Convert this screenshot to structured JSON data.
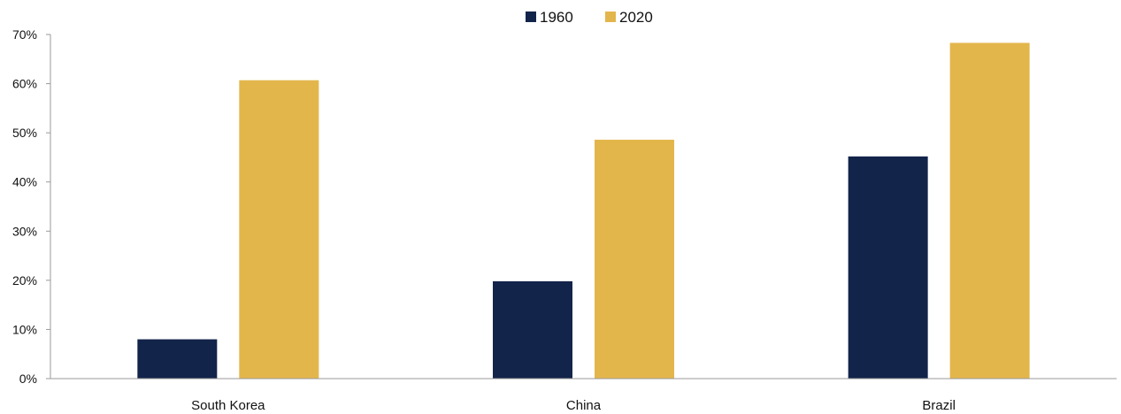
{
  "chart_data": {
    "type": "bar",
    "categories": [
      "South Korea",
      "China",
      "Brazil"
    ],
    "series": [
      {
        "name": "1960",
        "color": "#13244a",
        "values": [
          8,
          19.8,
          45.2
        ]
      },
      {
        "name": "2020",
        "color": "#e3b64c",
        "values": [
          60.7,
          48.6,
          68.3
        ]
      }
    ],
    "ylim": [
      0,
      70
    ],
    "yticks": [
      0,
      10,
      20,
      30,
      40,
      50,
      60,
      70
    ],
    "ytick_labels": [
      "0%",
      "10%",
      "20%",
      "30%",
      "40%",
      "50%",
      "60%",
      "70%"
    ],
    "legend_position": "top-center",
    "grid": false
  }
}
